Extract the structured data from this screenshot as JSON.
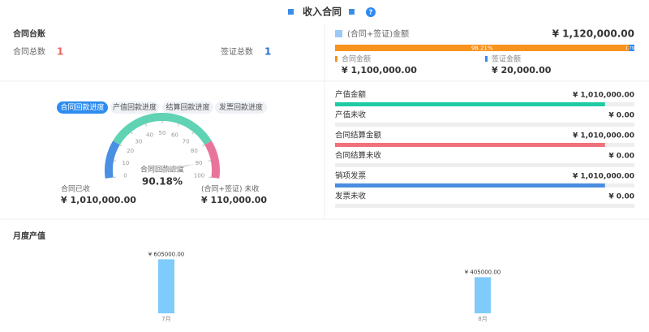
{
  "header": {
    "title": "收入合同",
    "help": "?"
  },
  "ledger": {
    "title": "合同台账",
    "items": [
      {
        "label": "合同总数",
        "value": 1,
        "color": "#f0615e"
      },
      {
        "label": "签证总数",
        "value": 1,
        "color": "#2d6fd8"
      }
    ]
  },
  "amount": {
    "label": "(合同+签证)金额",
    "total": {
      "value": 1120000,
      "label": "¥ 1,120,000.00"
    },
    "shares": [
      {
        "value": 98.21,
        "label": "98.21%",
        "color": "#f7931e"
      },
      {
        "value": 1.79,
        "label": "1.79%",
        "color": "#2d8cf0"
      }
    ],
    "parts": [
      {
        "name": "合同金额",
        "value": 1100000,
        "label": "¥ 1,100,000.00",
        "color": "#f7931e"
      },
      {
        "name": "签证金额",
        "value": 20000,
        "label": "¥ 20,000.00",
        "color": "#2d8cf0"
      }
    ]
  },
  "gauge": {
    "tabs": [
      "合同回款进度",
      "产值回款进度",
      "结算回款进度",
      "发票回款进度"
    ],
    "active": 0,
    "lim": [
      0,
      100
    ],
    "ticks": [
      0,
      10,
      20,
      30,
      40,
      50,
      60,
      70,
      80,
      90,
      100
    ],
    "bands": [
      {
        "to": 20,
        "color": "#4a90e2"
      },
      {
        "to": 80,
        "color": "#5fd3b3"
      },
      {
        "to": 100,
        "color": "#e8749c"
      }
    ],
    "name": "合同回款进度",
    "value": 90.18,
    "value_label": "90.18%"
  },
  "received": [
    {
      "label": "合同已收",
      "value": "¥ 1,010,000.00"
    },
    {
      "label": "(合同+签证) 未收",
      "value": "¥ 110,000.00"
    }
  ],
  "progress": {
    "rows": [
      {
        "label": "产值金额",
        "value": 1010000,
        "value_label": "¥ 1,010,000.00",
        "color": "#1ecba5"
      },
      {
        "label": "产值未收",
        "value": 0,
        "value_label": "¥ 0.00",
        "color": "#1ecba5"
      },
      {
        "label": "合同结算金额",
        "value": 1010000,
        "value_label": "¥ 1,010,000.00",
        "color": "#f0717a"
      },
      {
        "label": "合同结算未收",
        "value": 0,
        "value_label": "¥ 0.00",
        "color": "#f0717a"
      },
      {
        "label": "销项发票",
        "value": 1010000,
        "value_label": "¥ 1,010,000.00",
        "color": "#4a8de0"
      },
      {
        "label": "发票未收",
        "value": 0,
        "value_label": "¥ 0.00",
        "color": "#4a8de0"
      }
    ]
  },
  "chart_data": {
    "type": "bar",
    "title": "月度产值",
    "categories": [
      "7月",
      "8月"
    ],
    "values": [
      605000,
      405000
    ],
    "value_labels": [
      "¥ 605000.00",
      "¥ 405000.00"
    ],
    "color": "#7fcbfb",
    "ylim": [
      0,
      700000
    ]
  }
}
